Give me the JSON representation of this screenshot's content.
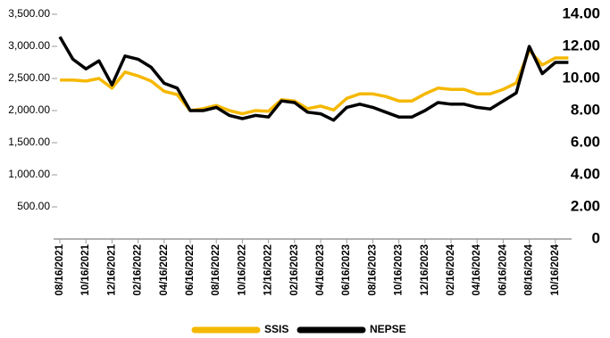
{
  "chart_data": {
    "type": "line",
    "categories": [
      "08/16/2021",
      null,
      "10/16/2021",
      null,
      "12/16/2021",
      null,
      "02/16/2022",
      null,
      "04/16/2022",
      null,
      "06/16/2022",
      null,
      "08/16/2022",
      null,
      "10/16/2022",
      null,
      "12/16/2022",
      null,
      "02/16/2023",
      null,
      "04/16/2023",
      null,
      "06/16/2023",
      null,
      "08/16/2023",
      null,
      "10/16/2023",
      null,
      "12/16/2023",
      null,
      "02/16/2024",
      null,
      "04/16/2024",
      null,
      "06/16/2024",
      null,
      "08/16/2024",
      null,
      "10/16/2024",
      null
    ],
    "series": [
      {
        "name": "SSIS",
        "color": "#f5b800",
        "values": [
          2475,
          2475,
          2460,
          2500,
          2350,
          2600,
          2540,
          2460,
          2300,
          2250,
          2000,
          2030,
          2080,
          2000,
          1950,
          2000,
          1990,
          2170,
          2150,
          2030,
          2070,
          2010,
          2190,
          2260,
          2260,
          2220,
          2150,
          2150,
          2260,
          2350,
          2330,
          2330,
          2260,
          2260,
          2330,
          2430,
          2940,
          2710,
          2820,
          2820
        ]
      },
      {
        "name": "NEPSE",
        "color": "#000000",
        "axis": "y2",
        "values": [
          12.6,
          11.2,
          10.6,
          11.1,
          9.6,
          11.4,
          11.2,
          10.7,
          9.7,
          9.4,
          8.0,
          8.0,
          8.2,
          7.7,
          7.5,
          7.7,
          7.6,
          8.6,
          8.5,
          7.9,
          7.8,
          7.4,
          8.2,
          8.4,
          8.2,
          7.9,
          7.6,
          7.6,
          8.0,
          8.5,
          8.4,
          8.4,
          8.2,
          8.1,
          8.6,
          9.1,
          12.0,
          10.3,
          11.0,
          11.0
        ]
      }
    ],
    "ylim": [
      0,
      3500
    ],
    "yticks": [
      {
        "value": 500,
        "label": "500.00"
      },
      {
        "value": 1000,
        "label": "1,000.00"
      },
      {
        "value": 1500,
        "label": "1,500.00"
      },
      {
        "value": 2000,
        "label": "2,000.00"
      },
      {
        "value": 2500,
        "label": "2,500.00"
      },
      {
        "value": 3000,
        "label": "3,000.00"
      },
      {
        "value": 3500,
        "label": "3,500.00"
      }
    ],
    "y2lim": [
      0,
      14
    ],
    "y2ticks": [
      0,
      {
        "value": 2,
        "label": "2.00"
      },
      {
        "value": 4,
        "label": "4.00"
      },
      {
        "value": 6,
        "label": "6.00"
      },
      {
        "value": 8,
        "label": "8.00"
      },
      {
        "value": 10,
        "label": "10.00"
      },
      {
        "value": 12,
        "label": "12.00"
      },
      {
        "value": 14,
        "label": "14.00"
      }
    ],
    "legend": "bottom"
  }
}
